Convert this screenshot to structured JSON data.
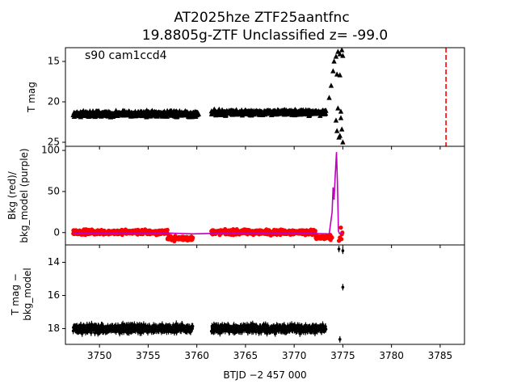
{
  "title": {
    "line1": "AT2025hze  ZTF25aantfnc",
    "line2": "19.8805g-ZTF Unclassified z= -99.0"
  },
  "chart_data": {
    "type": "scatter",
    "xlabel": "BTJD −2 457 000",
    "xlim": [
      3746.5,
      3787.5
    ],
    "x_ticks": [
      3750,
      3755,
      3760,
      3765,
      3770,
      3775,
      3780,
      3785
    ],
    "panels": [
      {
        "id": "tmag",
        "ylabel": "T mag",
        "annotation": "s90 cam1ccd4",
        "ylim": [
          25.5,
          13.3
        ],
        "y_ticks": [
          15,
          20,
          25
        ],
        "series": [
          {
            "marker": "triangle",
            "color": "#000000",
            "segments": [
              {
                "x0": 3747.3,
                "x1": 3760.2,
                "base": 21.5,
                "spread": 0.5
              },
              {
                "x0": 3761.5,
                "x1": 3773.3,
                "base": 21.3,
                "spread": 0.5
              }
            ],
            "points": [
              {
                "x": 3773.6,
                "y": 19.5
              },
              {
                "x": 3773.8,
                "y": 18.0
              },
              {
                "x": 3774.0,
                "y": 16.2
              },
              {
                "x": 3774.1,
                "y": 15.0
              },
              {
                "x": 3774.3,
                "y": 14.4
              },
              {
                "x": 3774.5,
                "y": 13.8
              },
              {
                "x": 3774.7,
                "y": 14.1
              },
              {
                "x": 3774.9,
                "y": 13.6
              },
              {
                "x": 3775.0,
                "y": 14.3
              },
              {
                "x": 3774.4,
                "y": 16.6
              },
              {
                "x": 3774.7,
                "y": 16.7
              },
              {
                "x": 3774.3,
                "y": 22.3
              },
              {
                "x": 3774.4,
                "y": 23.6
              },
              {
                "x": 3774.6,
                "y": 24.4
              },
              {
                "x": 3774.8,
                "y": 22.0
              },
              {
                "x": 3774.9,
                "y": 23.4
              },
              {
                "x": 3774.7,
                "y": 24.2
              },
              {
                "x": 3775.0,
                "y": 25.0
              },
              {
                "x": 3774.5,
                "y": 20.8
              },
              {
                "x": 3774.8,
                "y": 21.2
              }
            ]
          },
          {
            "marker": "vline",
            "color": "#ff0000",
            "x": 3785.6
          }
        ]
      },
      {
        "id": "bkg",
        "ylabel_line1": "Bkg (red)/",
        "ylabel_line2": "bkg_model (purple)",
        "ylim": [
          -15,
          105
        ],
        "y_ticks": [
          0,
          50,
          100
        ],
        "series": [
          {
            "name": "Bkg",
            "marker": "dot",
            "color": "#ff0000",
            "segments": [
              {
                "x0": 3747.3,
                "x1": 3757.0,
                "base": 0.5,
                "spread": 4.5
              },
              {
                "x0": 3757.0,
                "x1": 3759.6,
                "base": -7.0,
                "spread": 4.0
              },
              {
                "x0": 3761.5,
                "x1": 3772.2,
                "base": 0.5,
                "spread": 4.5
              },
              {
                "x0": 3772.2,
                "x1": 3773.9,
                "base": -6.0,
                "spread": 4.0
              }
            ],
            "points": [
              {
                "x": 3774.6,
                "y": -10.0
              },
              {
                "x": 3774.7,
                "y": -6.0
              },
              {
                "x": 3774.8,
                "y": 6.0
              },
              {
                "x": 3774.9,
                "y": -2.0
              },
              {
                "x": 3774.85,
                "y": -8.0
              },
              {
                "x": 3774.95,
                "y": 0.0
              }
            ]
          },
          {
            "name": "bkg_model",
            "marker": "line",
            "color": "#bf00bf",
            "x": [
              3747.3,
              3755.0,
              3757.0,
              3759.6,
              3761.5,
              3765.0,
              3772.0,
              3773.6,
              3773.9,
              3774.0,
              3774.1,
              3774.2,
              3774.35,
              3774.45,
              3774.55,
              3774.65,
              3774.8,
              3775.0
            ],
            "y": [
              -1.0,
              -1.0,
              -0.5,
              -1.5,
              -1.0,
              -0.8,
              -1.0,
              -1.5,
              25.0,
              55.0,
              40.0,
              65.0,
              98.0,
              58.0,
              2.0,
              -1.0,
              -1.0,
              -1.0
            ]
          }
        ]
      },
      {
        "id": "diff",
        "ylabel_line1": "T mag −",
        "ylabel_line2": "bkg_model",
        "ylim": [
          18.95,
          12.95
        ],
        "y_ticks": [
          14,
          16,
          18
        ],
        "series": [
          {
            "marker": "errorbar",
            "color": "#000000",
            "segments": [
              {
                "x0": 3747.3,
                "x1": 3759.6,
                "base": 18.0,
                "spread": 0.35
              },
              {
                "x0": 3761.5,
                "x1": 3773.3,
                "base": 18.0,
                "spread": 0.35
              }
            ],
            "points": [
              {
                "x": 3774.6,
                "y": 13.2
              },
              {
                "x": 3775.0,
                "y": 13.3
              },
              {
                "x": 3775.0,
                "y": 15.5
              },
              {
                "x": 3774.7,
                "y": 18.65
              }
            ]
          }
        ]
      }
    ]
  }
}
